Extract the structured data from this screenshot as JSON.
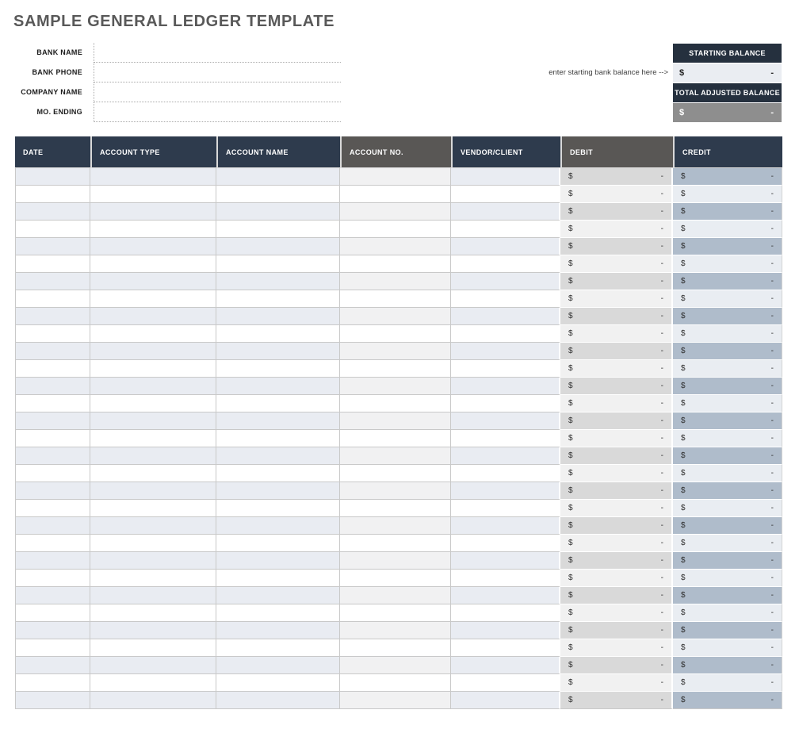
{
  "page": {
    "title": "SAMPLE GENERAL LEDGER TEMPLATE"
  },
  "form": {
    "fields": [
      {
        "id": "bank-name",
        "label": "BANK NAME",
        "value": ""
      },
      {
        "id": "bank-phone",
        "label": "BANK PHONE",
        "value": ""
      },
      {
        "id": "company-name",
        "label": "COMPANY NAME",
        "value": ""
      },
      {
        "id": "mo-ending",
        "label": "MO. ENDING",
        "value": ""
      }
    ]
  },
  "balance_box": {
    "note": "enter starting bank balance here -->",
    "starting": {
      "label": "STARTING BALANCE",
      "currency": "$",
      "amount": "-"
    },
    "total": {
      "label": "TOTAL ADJUSTED BALANCE",
      "currency": "$",
      "amount": "-"
    }
  },
  "ledger_table": {
    "columns": [
      {
        "id": "date",
        "label": "DATE",
        "theme": "navy",
        "type": "text"
      },
      {
        "id": "account-type",
        "label": "ACCOUNT TYPE",
        "theme": "navy",
        "type": "text"
      },
      {
        "id": "account-name",
        "label": "ACCOUNT NAME",
        "theme": "navy",
        "type": "text"
      },
      {
        "id": "account-no",
        "label": "ACCOUNT NO.",
        "theme": "gray",
        "type": "text"
      },
      {
        "id": "vendor-client",
        "label": "VENDOR/CLIENT",
        "theme": "navy",
        "type": "text"
      },
      {
        "id": "debit",
        "label": "DEBIT",
        "theme": "gray",
        "type": "money"
      },
      {
        "id": "credit",
        "label": "CREDIT",
        "theme": "navy",
        "type": "money"
      }
    ],
    "row_count": 31,
    "money_cell": {
      "currency": "$",
      "amount": "-"
    }
  },
  "theme": {
    "navy_header": "#2e3b4d",
    "gray_header": "#595755",
    "balance_header": "#25303e",
    "row_shade_blue": "#e9ecf2",
    "row_shade_gray": "#f1f1f2",
    "debit_shade": "#d9d9d9",
    "debit_light": "#f1f1f1",
    "credit_shade": "#afbccb",
    "credit_light": "#e9edf2",
    "starting_value_bg": "#eaedf2",
    "total_value_bg": "#8e8e8e",
    "title_color": "#595959",
    "grid_line": "#c9c9c9"
  }
}
